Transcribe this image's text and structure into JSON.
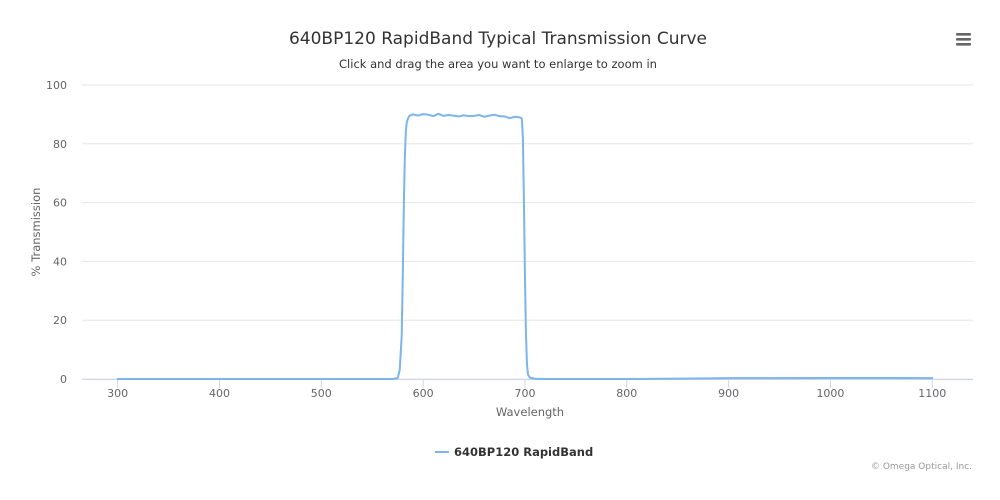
{
  "chart_data": {
    "type": "line",
    "title": "640BP120 RapidBand Typical Transmission Curve",
    "subtitle": "Click and drag the area you want to enlarge to zoom in",
    "xlabel": "Wavelength",
    "ylabel": "% Transmission",
    "xlim": [
      265,
      1140
    ],
    "ylim": [
      0,
      100
    ],
    "x_ticks": [
      300,
      400,
      500,
      600,
      700,
      800,
      900,
      1000,
      1100
    ],
    "y_ticks": [
      0,
      20,
      40,
      60,
      80,
      100
    ],
    "grid": "horizontal",
    "legend_position": "bottom-center",
    "series": [
      {
        "name": "640BP120 RapidBand",
        "color": "#7cb5ec",
        "x": [
          300,
          400,
          500,
          560,
          570,
          575,
          577,
          579,
          580,
          581,
          582,
          583,
          584,
          586,
          588,
          590,
          595,
          600,
          605,
          610,
          615,
          620,
          625,
          630,
          635,
          640,
          645,
          650,
          655,
          660,
          665,
          670,
          675,
          680,
          685,
          690,
          695,
          697,
          698,
          699,
          700,
          701,
          702,
          703,
          705,
          710,
          720,
          800,
          880,
          900,
          1000,
          1100
        ],
        "y": [
          0,
          0,
          0,
          0,
          0,
          0.3,
          3,
          15,
          35,
          58,
          75,
          84,
          87.5,
          89.3,
          89.8,
          90,
          89.6,
          90.1,
          89.9,
          89.4,
          90.2,
          89.5,
          89.8,
          89.6,
          89.3,
          89.7,
          89.4,
          89.5,
          89.8,
          89.2,
          89.6,
          89.9,
          89.4,
          89.3,
          88.7,
          89.2,
          89,
          88.5,
          82,
          60,
          35,
          15,
          5,
          1.5,
          0.4,
          0.1,
          0,
          0,
          0.2,
          0.3,
          0.35,
          0.3
        ]
      }
    ],
    "credits": "© Omega Optical, Inc."
  },
  "menu": {
    "icon": "hamburger-menu-icon"
  }
}
